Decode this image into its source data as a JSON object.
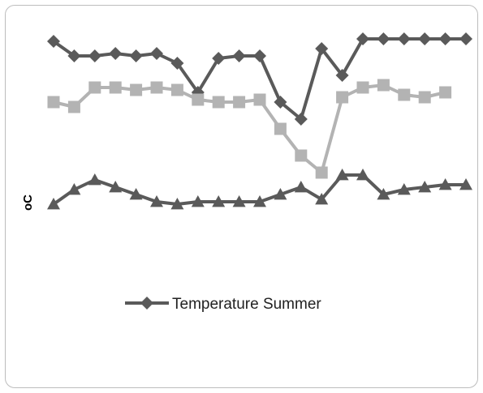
{
  "chart_data": {
    "type": "line",
    "ylabel": "oC",
    "xlabel": "",
    "ylim": [
      0,
      100
    ],
    "grid": false,
    "legend_position": "center",
    "x": [
      1,
      2,
      3,
      4,
      5,
      6,
      7,
      8,
      9,
      10,
      11,
      12,
      13,
      14,
      15,
      16,
      17,
      18,
      19,
      20,
      21
    ],
    "series": [
      {
        "name": "Temperature  Summer",
        "color": "#5a5a5a",
        "marker": "diamond",
        "in_legend": true,
        "values": [
          93,
          87,
          87,
          88,
          87,
          88,
          84,
          72,
          86,
          87,
          87,
          68,
          61,
          90,
          79,
          94,
          94,
          94,
          94,
          94,
          94
        ]
      },
      {
        "name": "",
        "color": "#b3b3b3",
        "marker": "square",
        "in_legend": false,
        "values": [
          68,
          66,
          74,
          74,
          73,
          74,
          73,
          69,
          68,
          68,
          69,
          57,
          46,
          39,
          70,
          74,
          75,
          71,
          70,
          72,
          null
        ]
      },
      {
        "name": "",
        "color": "#5a5a5a",
        "marker": "triangle",
        "in_legend": false,
        "values": [
          26,
          32,
          36,
          33,
          30,
          27,
          26,
          27,
          27,
          27,
          27,
          30,
          33,
          28,
          38,
          38,
          30,
          32,
          33,
          34,
          34
        ]
      }
    ]
  }
}
